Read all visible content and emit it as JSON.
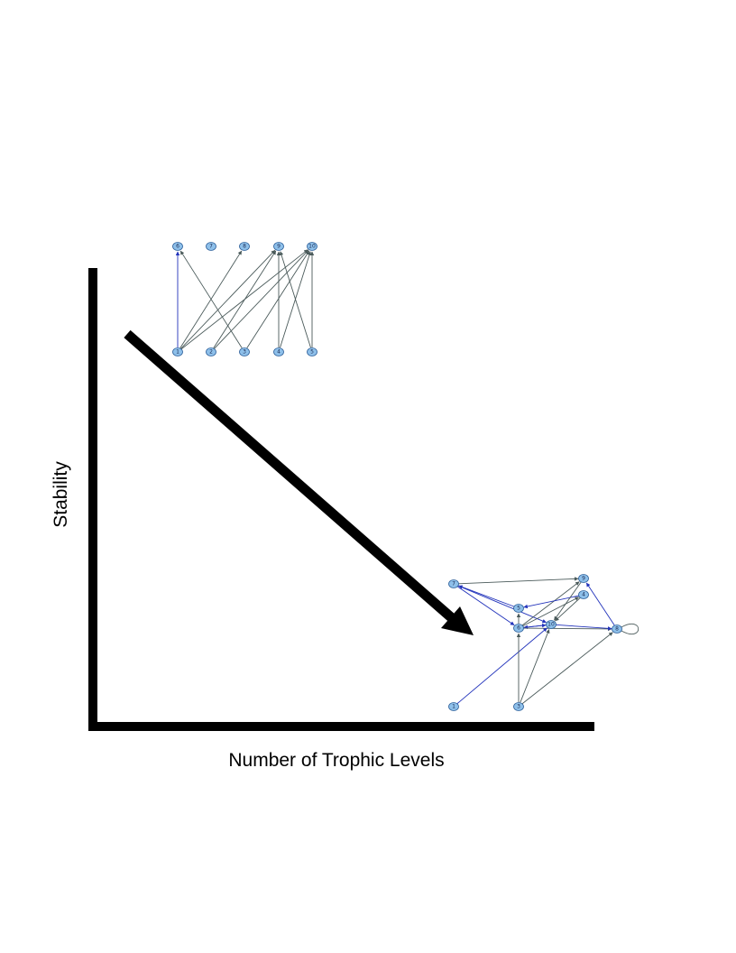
{
  "axes": {
    "x_title": "Number of Trophic Levels",
    "y_title": "Stability",
    "color": "#000000"
  },
  "trend": {
    "direction": "decreasing",
    "color": "#000000"
  },
  "colors": {
    "node_fill": "#8ec0ea",
    "node_stroke": "#2c5f9a",
    "edge_gray": "#4a5a5a",
    "edge_blue": "#2233bb"
  },
  "network_top": {
    "nodes": [
      {
        "id": "n1",
        "label": "1"
      },
      {
        "id": "n2",
        "label": "2"
      },
      {
        "id": "n3",
        "label": "3"
      },
      {
        "id": "n4",
        "label": "4"
      },
      {
        "id": "n5",
        "label": "5"
      },
      {
        "id": "n6",
        "label": "6"
      },
      {
        "id": "n7",
        "label": "7"
      },
      {
        "id": "n8",
        "label": "8"
      },
      {
        "id": "n9",
        "label": "9"
      },
      {
        "id": "n10",
        "label": "10"
      }
    ],
    "edges": [
      {
        "from": "n1",
        "to": "n6",
        "color": "blue"
      },
      {
        "from": "n1",
        "to": "n8",
        "color": "gray"
      },
      {
        "from": "n1",
        "to": "n9",
        "color": "gray"
      },
      {
        "from": "n1",
        "to": "n10",
        "color": "gray"
      },
      {
        "from": "n2",
        "to": "n9",
        "color": "gray"
      },
      {
        "from": "n2",
        "to": "n10",
        "color": "gray"
      },
      {
        "from": "n3",
        "to": "n6",
        "color": "gray"
      },
      {
        "from": "n3",
        "to": "n10",
        "color": "gray"
      },
      {
        "from": "n4",
        "to": "n9",
        "color": "gray"
      },
      {
        "from": "n4",
        "to": "n10",
        "color": "gray"
      },
      {
        "from": "n5",
        "to": "n9",
        "color": "gray"
      },
      {
        "from": "n5",
        "to": "n10",
        "color": "gray"
      }
    ]
  },
  "network_bottom": {
    "nodes": [
      {
        "id": "m7",
        "label": "7"
      },
      {
        "id": "m9",
        "label": "9"
      },
      {
        "id": "m4",
        "label": "4"
      },
      {
        "id": "m5",
        "label": "5"
      },
      {
        "id": "m6",
        "label": "6"
      },
      {
        "id": "m10",
        "label": "10"
      },
      {
        "id": "m8",
        "label": "8"
      },
      {
        "id": "m1",
        "label": "1"
      },
      {
        "id": "m3",
        "label": "3"
      }
    ],
    "edges": [
      {
        "from": "m7",
        "to": "m9",
        "color": "gray"
      },
      {
        "from": "m7",
        "to": "m10",
        "color": "blue"
      },
      {
        "from": "m7",
        "to": "m6",
        "color": "blue"
      },
      {
        "from": "m5",
        "to": "m7",
        "color": "blue"
      },
      {
        "from": "m6",
        "to": "m9",
        "color": "gray"
      },
      {
        "from": "m6",
        "to": "m5",
        "color": "gray"
      },
      {
        "from": "m6",
        "to": "m4",
        "color": "gray"
      },
      {
        "from": "m6",
        "to": "m10",
        "color": "blue"
      },
      {
        "from": "m10",
        "to": "m6",
        "color": "blue"
      },
      {
        "from": "m6",
        "to": "m8",
        "color": "gray"
      },
      {
        "from": "m10",
        "to": "m8",
        "color": "blue"
      },
      {
        "from": "m4",
        "to": "m5",
        "color": "blue"
      },
      {
        "from": "m4",
        "to": "m10",
        "color": "gray"
      },
      {
        "from": "m9",
        "to": "m10",
        "color": "gray"
      },
      {
        "from": "m8",
        "to": "m9",
        "color": "blue"
      },
      {
        "from": "m1",
        "to": "m10",
        "color": "blue"
      },
      {
        "from": "m3",
        "to": "m6",
        "color": "gray"
      },
      {
        "from": "m3",
        "to": "m10",
        "color": "gray"
      },
      {
        "from": "m3",
        "to": "m8",
        "color": "gray"
      }
    ],
    "self_loop": "m8"
  }
}
